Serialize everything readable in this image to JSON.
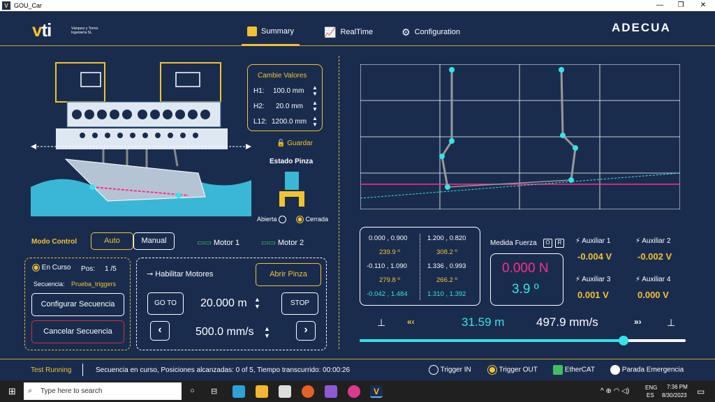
{
  "window": {
    "title": "GOU_Car"
  },
  "header": {
    "brand": "vti",
    "brand_sub": "Vázquez y Torres Ingeniería SL",
    "tabs": [
      {
        "label": "Summary"
      },
      {
        "label": "RealTime"
      },
      {
        "label": "Configuration"
      }
    ],
    "partner_logo": "ADECUA"
  },
  "values_panel": {
    "title": "Cambie Valores",
    "rows": [
      {
        "label": "H1:",
        "value": "100.0 mm"
      },
      {
        "label": "H2:",
        "value": "20.0 mm"
      },
      {
        "label": "L12:",
        "value": "1200.0 mm"
      }
    ],
    "save_label": "Guardar"
  },
  "gripper": {
    "title": "Estado Pinza",
    "open_label": "Abierta",
    "closed_label": "Cerrada",
    "selected": "Cerrada"
  },
  "mode": {
    "label": "Modo Control",
    "auto": "Auto",
    "manual": "Manual",
    "motor1": "Motor 1",
    "motor2": "Motor 2"
  },
  "sequence": {
    "status": "En Curso",
    "pos_label": "Pos:",
    "pos_value": "1 /5",
    "seq_label": "Secuencia:",
    "seq_name": "Prueba_triggers",
    "configure": "Configurar Secuencia",
    "cancel": "Cancelar Secuencia"
  },
  "motion": {
    "enable_label": "Habilitar Motores",
    "open_gripper": "Abrir Pinza",
    "goto": "GO TO",
    "position": "20.000 m",
    "stop": "STOP",
    "speed": "500.0 mm/s"
  },
  "coords": {
    "left": [
      {
        "xy": "0.000 , 0.900",
        "angle": "239.9 º"
      },
      {
        "xy": "-0.110 , 1.090",
        "angle": "279.8 º"
      },
      {
        "xy": "-0.042 , 1.484",
        "angle": ""
      }
    ],
    "right": [
      {
        "xy": "1.200 , 0.820",
        "angle": "308.2 º"
      },
      {
        "xy": "1.336 , 0.993",
        "angle": "266.2 º"
      },
      {
        "xy": "1.310 , 1.392",
        "angle": ""
      }
    ]
  },
  "force": {
    "title": "Medida Fuerza",
    "btn_o": "O",
    "btn_r": "R",
    "value": "0.000 N",
    "angle": "3.9 º"
  },
  "auxiliaries": [
    {
      "name": "Auxiliar 1",
      "value": "-0.004 V"
    },
    {
      "name": "Auxiliar 2",
      "value": "-0.002 V"
    },
    {
      "name": "Auxiliar 3",
      "value": "0.001 V"
    },
    {
      "name": "Auxiliar 4",
      "value": "0.000 V"
    }
  ],
  "carriage": {
    "position": "31.59 m",
    "speed": "497.9 mm/s",
    "progress": 0.81,
    "left_arrows": "«‹",
    "right_arrows": "»›"
  },
  "status": {
    "state": "Test Running",
    "message": "Secuencia en curso, Posiciones alcanzadas: 0 of 5, Tiempo transcurrido: 00:00:26",
    "trigger_in": "Trigger IN",
    "trigger_out": "Trigger OUT",
    "ethercat": "EtherCAT",
    "emergency": "Parada Emergencia"
  },
  "taskbar": {
    "search_placeholder": "Type here to search",
    "lang1": "ENG",
    "lang2": "ES",
    "time": "7:36 PM",
    "date": "8/30/2023"
  },
  "colors": {
    "accent": "#f2c230",
    "cyan": "#37e2e6",
    "pink": "#ff2d8c",
    "bg": "#1a2c4e"
  }
}
